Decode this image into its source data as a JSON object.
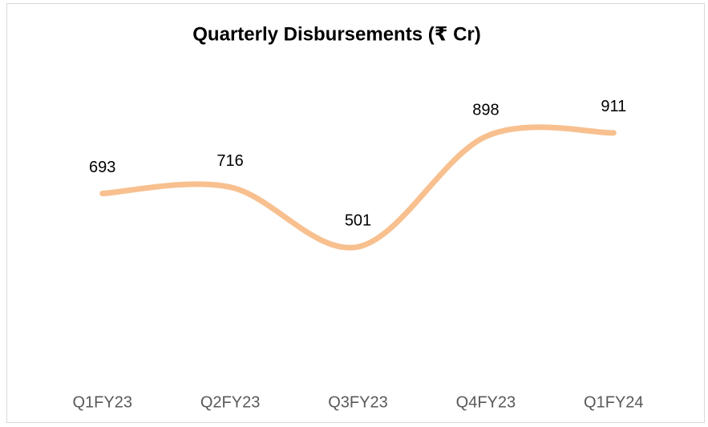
{
  "chart_data": {
    "type": "line",
    "title": "Quarterly Disbursements (₹ Cr)",
    "categories": [
      "Q1FY23",
      "Q2FY23",
      "Q3FY23",
      "Q4FY23",
      "Q1FY24"
    ],
    "series": [
      {
        "name": "Disbursements",
        "color": "#f8c08f",
        "values": [
          693,
          716,
          501,
          898,
          911
        ]
      }
    ],
    "ylim": [
      0,
      1000
    ],
    "smooth": true
  }
}
